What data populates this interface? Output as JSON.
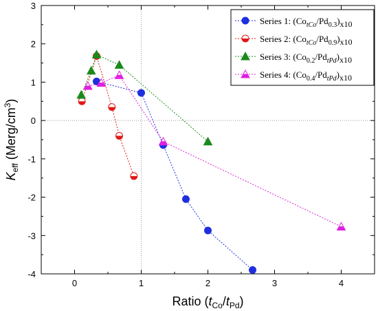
{
  "chart_data": {
    "type": "scatter",
    "xlabel": {
      "main": "Ratio (",
      "t1": "t",
      "t1sub": "Co",
      "slash": "/",
      "t2": "t",
      "t2sub": "Pd",
      "close": ")"
    },
    "ylabel": {
      "k": "K",
      "ksub": "eff",
      "rest": " (Merg/cm",
      "sup": "3",
      "close": ")"
    },
    "xlim": [
      -0.5,
      4.5
    ],
    "ylim": [
      -4,
      3
    ],
    "xticks": [
      0,
      1,
      2,
      3,
      4
    ],
    "yticks": [
      3,
      2,
      1,
      0,
      -1,
      -2,
      -3,
      -4
    ],
    "reference_lines": {
      "x": 1,
      "y": 0
    },
    "grid": false,
    "legend_position": "top-right",
    "series": [
      {
        "name": "Series 1: (Co_tCo/Pd_0.3)x10",
        "label_parts": {
          "prefix": "Series 1: (Co",
          "sub1": "tCo",
          "mid": "/Pd",
          "sub2": "0.3",
          "suffix": ")x10"
        },
        "marker": "circle",
        "color": "#1f2fe0",
        "x": [
          0.33,
          1.0,
          1.33,
          1.67,
          2.0,
          2.67
        ],
        "y": [
          1.02,
          0.72,
          -0.64,
          -2.05,
          -2.87,
          -3.9
        ]
      },
      {
        "name": "Series 2: (Co_tCo/Pd_0.9)x10",
        "label_parts": {
          "prefix": "Series 2: (Co",
          "sub1": "tCo",
          "mid": "/Pd",
          "sub2": "0.9",
          "suffix": ")x10"
        },
        "marker": "half-circle",
        "color": "#e01818",
        "x": [
          0.11,
          0.33,
          0.56,
          0.67,
          0.89
        ],
        "y": [
          0.5,
          1.68,
          0.35,
          -0.4,
          -1.45
        ]
      },
      {
        "name": "Series 3: (Co_0.2/Pd_tPd)x10",
        "label_parts": {
          "prefix": "Series 3: (Co",
          "sub1": "0.2",
          "mid": "/Pd",
          "sub2": "tPd",
          "suffix": ")x10"
        },
        "marker": "triangle",
        "color": "#1a8a1a",
        "x": [
          0.1,
          0.25,
          0.33,
          0.67,
          2.0
        ],
        "y": [
          0.67,
          1.3,
          1.72,
          1.45,
          -0.55
        ]
      },
      {
        "name": "Series 4: (Co_0.4/Pd_tPd)x10",
        "label_parts": {
          "prefix": "Series 4: (Co",
          "sub1": "0.4",
          "mid": "/Pd",
          "sub2": "tPd",
          "suffix": ")x10"
        },
        "marker": "half-triangle",
        "color": "#e020e0",
        "x": [
          0.2,
          0.4,
          0.67,
          1.33,
          4.0
        ],
        "y": [
          0.9,
          0.98,
          1.18,
          -0.55,
          -2.77
        ]
      }
    ]
  }
}
